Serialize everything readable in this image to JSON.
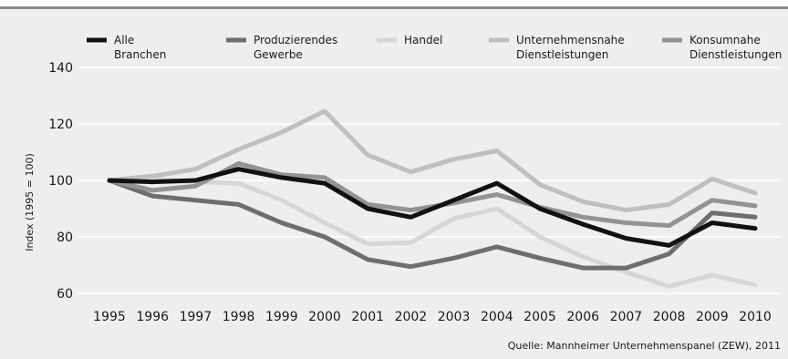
{
  "chart_data": {
    "type": "line",
    "title": "",
    "xlabel": "",
    "ylabel": "Index (1995 = 100)",
    "ylim": [
      60,
      140
    ],
    "yticks": [
      60,
      80,
      100,
      120,
      140
    ],
    "grid": true,
    "legend_position": "top",
    "x": [
      1995,
      1996,
      1997,
      1998,
      1999,
      2000,
      2001,
      2002,
      2003,
      2004,
      2005,
      2006,
      2007,
      2008,
      2009,
      2010
    ],
    "series": [
      {
        "name": "Alle Branchen",
        "color": "#111111",
        "values": [
          100,
          99.5,
          100,
          104,
          101,
          99,
          90,
          87,
          93,
          99,
          90,
          84.5,
          79.5,
          77,
          85,
          83
        ]
      },
      {
        "name": "Produzierendes Gewerbe",
        "color": "#6e6e6e",
        "values": [
          100,
          94.5,
          93,
          91.5,
          85,
          80,
          72,
          69.5,
          72.5,
          76.5,
          72.5,
          69,
          69,
          74,
          88.5,
          87
        ]
      },
      {
        "name": "Handel",
        "color": "#d6d6d6",
        "values": [
          100,
          100.5,
          99.5,
          99,
          93,
          85,
          77.5,
          78,
          86.5,
          90,
          80,
          73,
          67.5,
          62.5,
          66.5,
          63
        ]
      },
      {
        "name": "Unternehmensnahe Dienstleistungen",
        "color": "#bfbfbf",
        "values": [
          100,
          101.5,
          104,
          111,
          117,
          124.5,
          109,
          103,
          107.5,
          110.5,
          98.5,
          92.5,
          89.5,
          91.5,
          100.5,
          95.5
        ]
      },
      {
        "name": "Konsumnahe Dienstleistungen",
        "color": "#939393",
        "values": [
          100,
          96.5,
          98,
          106,
          102,
          101,
          91.5,
          89.5,
          92,
          95,
          90.5,
          87,
          85,
          84,
          93,
          91
        ]
      }
    ],
    "source": "Quelle: Mannheimer Unternehmenspanel (ZEW), 2011"
  }
}
